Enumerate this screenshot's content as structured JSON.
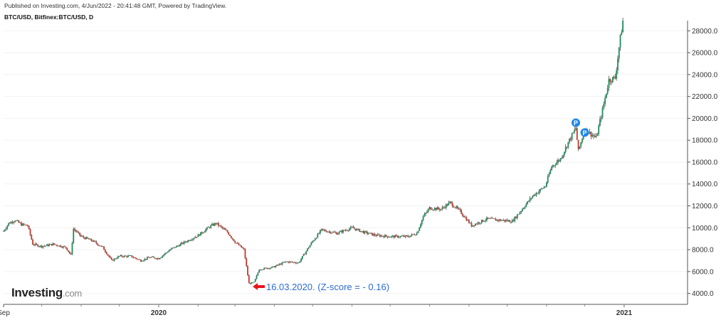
{
  "header": {
    "published": "Published on Investing.com, 4/Jun/2022 - 20:41:48 GMT, Powered by TradingView.",
    "symbol": "BTC/USD, Bitfinex:BTC/USD, D"
  },
  "logo": {
    "main": "Investing",
    "suffix": ".com"
  },
  "annotation": {
    "text": "16.03.2020. (Z-score = - 0.16)",
    "date": "2020-03-16",
    "color": "#2b6bd6",
    "arrow_color": "#e8141c"
  },
  "markers": [
    {
      "label": "P",
      "date": "2020-11-24",
      "price": 19600
    },
    {
      "label": "P",
      "date": "2020-12-01",
      "price": 18700
    }
  ],
  "chart_data": {
    "type": "candlestick",
    "title": "",
    "series_name": "BTC/USD",
    "up_color": "#1f8a5a",
    "down_color": "#c0392b",
    "ylim": [
      3000,
      28800
    ],
    "yticks": [
      "4000.0",
      "6000.0",
      "8000.0",
      "10000.0",
      "12000.0",
      "14000.0",
      "16000.0",
      "18000.0",
      "20000.0",
      "22000.0",
      "24000.0",
      "26000.0",
      "28000.0"
    ],
    "xticks": [
      {
        "label": "Sep",
        "date": "2019-09-01",
        "bold": false
      },
      {
        "label": "2020",
        "date": "2020-01-01",
        "bold": true
      },
      {
        "label": "2021",
        "date": "2021-01-01",
        "bold": true
      }
    ],
    "xlim": [
      "2019-09-01",
      "2021-01-10"
    ],
    "points": [
      {
        "date": "2019-09-01",
        "close": 9700
      },
      {
        "date": "2019-09-05",
        "close": 10400
      },
      {
        "date": "2019-09-10",
        "close": 10700
      },
      {
        "date": "2019-09-15",
        "close": 10300
      },
      {
        "date": "2019-09-20",
        "close": 10200
      },
      {
        "date": "2019-09-24",
        "close": 8500
      },
      {
        "date": "2019-10-01",
        "close": 8300
      },
      {
        "date": "2019-10-10",
        "close": 8500
      },
      {
        "date": "2019-10-20",
        "close": 8200
      },
      {
        "date": "2019-10-24",
        "close": 7500
      },
      {
        "date": "2019-10-26",
        "close": 9900
      },
      {
        "date": "2019-11-01",
        "close": 9200
      },
      {
        "date": "2019-11-10",
        "close": 8800
      },
      {
        "date": "2019-11-18",
        "close": 8200
      },
      {
        "date": "2019-11-25",
        "close": 7000
      },
      {
        "date": "2019-12-01",
        "close": 7400
      },
      {
        "date": "2019-12-10",
        "close": 7400
      },
      {
        "date": "2019-12-18",
        "close": 7000
      },
      {
        "date": "2019-12-25",
        "close": 7300
      },
      {
        "date": "2020-01-01",
        "close": 7200
      },
      {
        "date": "2020-01-10",
        "close": 8000
      },
      {
        "date": "2020-01-20",
        "close": 8600
      },
      {
        "date": "2020-02-01",
        "close": 9300
      },
      {
        "date": "2020-02-10",
        "close": 10100
      },
      {
        "date": "2020-02-15",
        "close": 10400
      },
      {
        "date": "2020-02-24",
        "close": 9600
      },
      {
        "date": "2020-03-01",
        "close": 8700
      },
      {
        "date": "2020-03-08",
        "close": 8000
      },
      {
        "date": "2020-03-12",
        "close": 4900
      },
      {
        "date": "2020-03-16",
        "close": 5000
      },
      {
        "date": "2020-03-20",
        "close": 6200
      },
      {
        "date": "2020-03-31",
        "close": 6400
      },
      {
        "date": "2020-04-10",
        "close": 6900
      },
      {
        "date": "2020-04-20",
        "close": 6800
      },
      {
        "date": "2020-04-30",
        "close": 8600
      },
      {
        "date": "2020-05-08",
        "close": 9800
      },
      {
        "date": "2020-05-20",
        "close": 9500
      },
      {
        "date": "2020-06-01",
        "close": 10000
      },
      {
        "date": "2020-06-10",
        "close": 9600
      },
      {
        "date": "2020-06-20",
        "close": 9300
      },
      {
        "date": "2020-07-01",
        "close": 9200
      },
      {
        "date": "2020-07-15",
        "close": 9200
      },
      {
        "date": "2020-07-22",
        "close": 9500
      },
      {
        "date": "2020-07-27",
        "close": 11000
      },
      {
        "date": "2020-08-01",
        "close": 11800
      },
      {
        "date": "2020-08-10",
        "close": 11700
      },
      {
        "date": "2020-08-17",
        "close": 12300
      },
      {
        "date": "2020-08-25",
        "close": 11500
      },
      {
        "date": "2020-09-03",
        "close": 10200
      },
      {
        "date": "2020-09-15",
        "close": 10800
      },
      {
        "date": "2020-09-25",
        "close": 10700
      },
      {
        "date": "2020-10-05",
        "close": 10600
      },
      {
        "date": "2020-10-10",
        "close": 11300
      },
      {
        "date": "2020-10-21",
        "close": 12900
      },
      {
        "date": "2020-10-31",
        "close": 13800
      },
      {
        "date": "2020-11-05",
        "close": 15600
      },
      {
        "date": "2020-11-12",
        "close": 16300
      },
      {
        "date": "2020-11-18",
        "close": 17800
      },
      {
        "date": "2020-11-24",
        "close": 19100
      },
      {
        "date": "2020-11-26",
        "close": 17000
      },
      {
        "date": "2020-12-01",
        "close": 19000
      },
      {
        "date": "2020-12-10",
        "close": 18200
      },
      {
        "date": "2020-12-16",
        "close": 21300
      },
      {
        "date": "2020-12-20",
        "close": 23500
      },
      {
        "date": "2020-12-25",
        "close": 23700
      },
      {
        "date": "2020-12-28",
        "close": 26500
      },
      {
        "date": "2020-12-31",
        "close": 28900
      }
    ]
  }
}
